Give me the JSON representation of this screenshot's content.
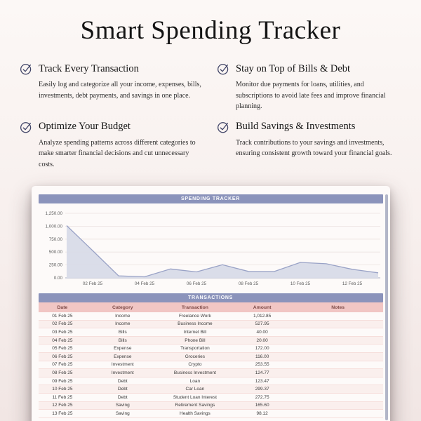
{
  "page": {
    "title": "Smart Spending Tracker"
  },
  "features": [
    {
      "title": "Track Every Transaction",
      "description": "Easily log and categorize all your income, expenses, bills, investments, debt payments, and savings in one place."
    },
    {
      "title": "Stay on Top of Bills & Debt",
      "description": "Monitor due payments for loans, utilities, and subscriptions to avoid late fees and improve financial planning."
    },
    {
      "title": "Optimize Your Budget",
      "description": "Analyze spending patterns across different categories to make smarter financial decisions and cut unnecessary costs."
    },
    {
      "title": "Build Savings & Investments",
      "description": "Track contributions to your savings and investments, ensuring consistent growth toward your financial goals."
    }
  ],
  "icons": {
    "feature_icon": "checkmark-circle"
  },
  "colors": {
    "accent_purple": "#8b93bb",
    "header_pink": "#f1c6c4",
    "icon_navy": "#3e4265",
    "chart_line": "#99a2c6",
    "chart_fill": "#d8dbe8"
  },
  "spreadsheet": {
    "header": "SPENDING TRACKER",
    "transactions_header": "TRANSACTIONS",
    "table": {
      "columns": [
        "Date",
        "Category",
        "Transaction",
        "Amount",
        "Notes"
      ],
      "rows": [
        [
          "01 Feb 25",
          "Income",
          "Freelance Work",
          "1,012.85",
          ""
        ],
        [
          "02 Feb 25",
          "Income",
          "Business Income",
          "527.95",
          ""
        ],
        [
          "03 Feb 25",
          "Bills",
          "Internet Bill",
          "40.00",
          ""
        ],
        [
          "04 Feb 25",
          "Bills",
          "Phone Bill",
          "20.00",
          ""
        ],
        [
          "05 Feb 25",
          "Expense",
          "Transportation",
          "172.00",
          ""
        ],
        [
          "06 Feb 25",
          "Expense",
          "Groceries",
          "116.00",
          ""
        ],
        [
          "07 Feb 25",
          "Investment",
          "Crypto",
          "253.55",
          ""
        ],
        [
          "08 Feb 25",
          "Investment",
          "Business Investment",
          "124.77",
          ""
        ],
        [
          "09 Feb 25",
          "Debt",
          "Loan",
          "123.47",
          ""
        ],
        [
          "10 Feb 25",
          "Debt",
          "Car Loan",
          "299.37",
          ""
        ],
        [
          "11 Feb 25",
          "Debt",
          "Student Loan Interest",
          "272.75",
          ""
        ],
        [
          "12 Feb 25",
          "Saving",
          "Retirement Savings",
          "165.60",
          ""
        ],
        [
          "13 Feb 25",
          "Saving",
          "Health Savings",
          "98.12",
          ""
        ]
      ]
    }
  },
  "chart_data": {
    "type": "area",
    "title": "SPENDING TRACKER",
    "x": [
      "01 Feb 25",
      "02 Feb 25",
      "03 Feb 25",
      "04 Feb 25",
      "05 Feb 25",
      "06 Feb 25",
      "07 Feb 25",
      "08 Feb 25",
      "09 Feb 25",
      "10 Feb 25",
      "11 Feb 25",
      "12 Feb 25",
      "13 Feb 25"
    ],
    "values": [
      1012.85,
      527.95,
      40.0,
      20.0,
      172.0,
      116.0,
      253.55,
      124.77,
      123.47,
      299.37,
      272.75,
      165.6,
      98.12
    ],
    "xtick_labels": [
      "02 Feb 25",
      "04 Feb 25",
      "06 Feb 25",
      "08 Feb 25",
      "10 Feb 25",
      "12 Feb 25"
    ],
    "xtick_indices": [
      1,
      3,
      5,
      7,
      9,
      11
    ],
    "yticks": [
      1250,
      1000,
      750,
      500,
      250,
      0
    ],
    "ytick_labels": [
      "1,250.00",
      "1,000.00",
      "750.00",
      "500.00",
      "250.00",
      "0.00"
    ],
    "ylim": [
      0,
      1250
    ],
    "grid": true,
    "legend": "none",
    "xlabel": "",
    "ylabel": ""
  }
}
